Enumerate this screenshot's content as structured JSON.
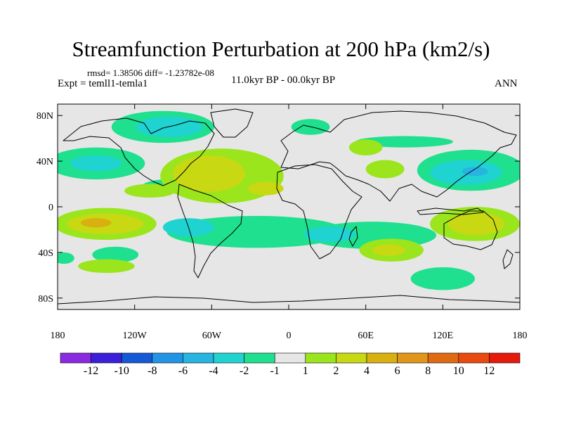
{
  "title": "Streamfunction Perturbation at 200 hPa (km2/s)",
  "stats_line": "rmsd= 1.38506  diff= -1.23782e-08",
  "experiment_line": "Expt = temll1-temla1",
  "period_line": "11.0kyr BP - 00.0kyr BP",
  "season": "ANN",
  "lat_ticks": [
    {
      "label": "80N",
      "value": 80
    },
    {
      "label": "40N",
      "value": 40
    },
    {
      "label": "0",
      "value": 0
    },
    {
      "label": "40S",
      "value": -40
    },
    {
      "label": "80S",
      "value": -80
    }
  ],
  "lon_ticks": [
    {
      "label": "180",
      "value": -180
    },
    {
      "label": "120W",
      "value": -120
    },
    {
      "label": "60W",
      "value": -60
    },
    {
      "label": "0",
      "value": 0
    },
    {
      "label": "60E",
      "value": 60
    },
    {
      "label": "120E",
      "value": 120
    },
    {
      "label": "180",
      "value": 180
    }
  ],
  "colorbar": {
    "colors": [
      "#8a2be2",
      "#3c1fd8",
      "#1459d6",
      "#2194e6",
      "#27b4e0",
      "#1fd3d0",
      "#1fe08e",
      "#e6e6e6",
      "#9be51d",
      "#c8d812",
      "#d8b010",
      "#e0961a",
      "#e06a12",
      "#e84a10",
      "#e51a0a"
    ],
    "labels": [
      "-12",
      "-10",
      "-8",
      "-6",
      "-4",
      "-2",
      "-1",
      "1",
      "2",
      "4",
      "6",
      "8",
      "10",
      "12"
    ]
  },
  "levels": {
    "neg1": "#1fe08e",
    "neg2": "#1fd3d0",
    "neg4": "#27b4e0",
    "pos1": "#9be51d",
    "pos2": "#c8d812",
    "pos4": "#d8b010"
  },
  "map_features": {
    "neg1": [
      {
        "lon": -25,
        "lat": -22,
        "rlon": 70,
        "rlat": 14
      },
      {
        "lon": 65,
        "lat": -25,
        "rlon": 50,
        "rlat": 12
      },
      {
        "lon": 142,
        "lat": 32,
        "rlon": 42,
        "rlat": 18
      },
      {
        "lon": -98,
        "lat": 70,
        "rlon": 40,
        "rlat": 14
      },
      {
        "lon": 17,
        "lat": 70,
        "rlon": 15,
        "rlat": 7
      },
      {
        "lon": -150,
        "lat": 38,
        "rlon": 38,
        "rlat": 14
      },
      {
        "lon": -135,
        "lat": -42,
        "rlon": 18,
        "rlat": 7
      },
      {
        "lon": 120,
        "lat": -63,
        "rlon": 25,
        "rlat": 10
      },
      {
        "lon": 90,
        "lat": 57,
        "rlon": 38,
        "rlat": 5
      },
      {
        "lon": -94,
        "lat": 18,
        "rlon": 20,
        "rlat": 6
      },
      {
        "lon": -175,
        "lat": -45,
        "rlon": 8,
        "rlat": 5
      }
    ],
    "neg2": [
      {
        "lon": -78,
        "lat": -18,
        "rlon": 20,
        "rlat": 8
      },
      {
        "lon": 32,
        "lat": -24,
        "rlon": 20,
        "rlat": 7
      },
      {
        "lon": 138,
        "lat": 30,
        "rlon": 28,
        "rlat": 11
      },
      {
        "lon": -93,
        "lat": 70,
        "rlon": 26,
        "rlat": 9
      },
      {
        "lon": -150,
        "lat": 38,
        "rlon": 20,
        "rlat": 7
      }
    ],
    "neg4": [
      {
        "lon": 145,
        "lat": 31,
        "rlon": 10,
        "rlat": 4
      }
    ],
    "pos1": [
      {
        "lon": -52,
        "lat": 27,
        "rlon": 48,
        "rlat": 24
      },
      {
        "lon": -143,
        "lat": -15,
        "rlon": 40,
        "rlat": 14
      },
      {
        "lon": 145,
        "lat": -15,
        "rlon": 35,
        "rlat": 15
      },
      {
        "lon": 60,
        "lat": 52,
        "rlon": 13,
        "rlat": 7
      },
      {
        "lon": 75,
        "lat": 33,
        "rlon": 15,
        "rlat": 8
      },
      {
        "lon": 80,
        "lat": -38,
        "rlon": 25,
        "rlat": 10
      },
      {
        "lon": -108,
        "lat": 14,
        "rlon": 20,
        "rlat": 6
      },
      {
        "lon": -142,
        "lat": -52,
        "rlon": 22,
        "rlat": 6
      }
    ],
    "pos2": [
      {
        "lon": -62,
        "lat": 29,
        "rlon": 28,
        "rlat": 16
      },
      {
        "lon": -143,
        "lat": -15,
        "rlon": 30,
        "rlat": 9
      },
      {
        "lon": 146,
        "lat": -15,
        "rlon": 22,
        "rlat": 10
      },
      {
        "lon": 78,
        "lat": -38,
        "rlon": 13,
        "rlat": 5
      },
      {
        "lon": -18,
        "lat": 16,
        "rlon": 14,
        "rlat": 6
      }
    ],
    "pos4": [
      {
        "lon": -150,
        "lat": -14,
        "rlon": 12,
        "rlat": 4
      }
    ]
  }
}
